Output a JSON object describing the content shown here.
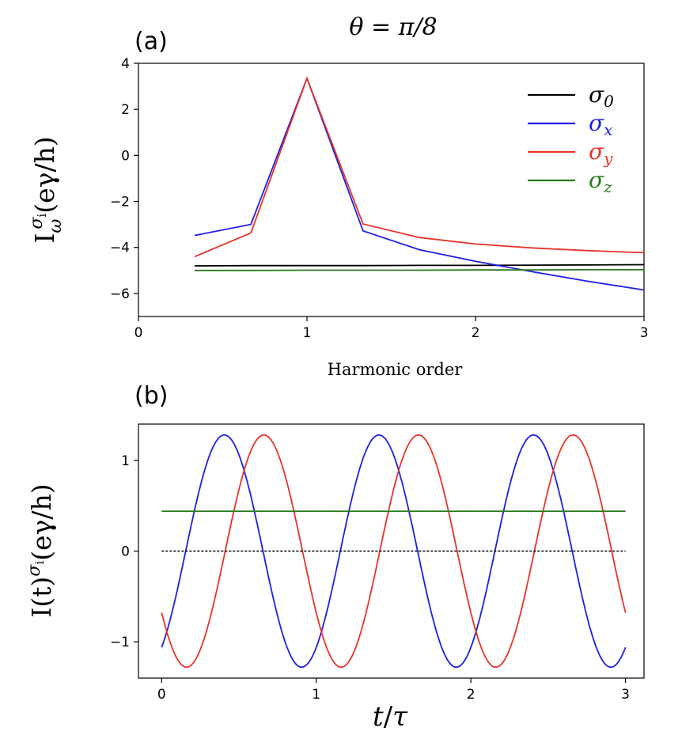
{
  "title": "θ = π/8",
  "chart_data": [
    {
      "type": "line",
      "panel_label": "(a)",
      "xlabel": "Harmonic order",
      "ylabel": {
        "base": "I",
        "sub": "ω",
        "sup": "σ",
        "supsub": "i",
        "unit": "(eγ/h)"
      },
      "xlim": [
        0,
        3
      ],
      "ylim": [
        -7,
        4
      ],
      "xticks": [
        0,
        1,
        2,
        3
      ],
      "yticks": [
        4,
        2,
        0,
        -2,
        -4,
        -6
      ],
      "ytick_labels": [
        "4",
        "2",
        "0",
        "−2",
        "−4",
        "−6"
      ],
      "legend_position": "top-right",
      "series": [
        {
          "name": "σ",
          "sub": "0",
          "color": "#000000",
          "x": [
            0.333,
            0.667,
            1,
            1.333,
            1.667,
            2,
            2.333,
            2.667,
            3
          ],
          "y": [
            -4.8,
            -4.79,
            -4.79,
            -4.79,
            -4.78,
            -4.78,
            -4.77,
            -4.76,
            -4.75
          ]
        },
        {
          "name": "σ",
          "sub": "x",
          "color": "#1f1fe6",
          "x": [
            0.333,
            0.667,
            1,
            1.333,
            1.667,
            2,
            2.333,
            2.667,
            3
          ],
          "y": [
            -3.48,
            -3.0,
            3.35,
            -3.28,
            -4.1,
            -4.6,
            -5.05,
            -5.47,
            -5.85
          ]
        },
        {
          "name": "σ",
          "sub": "y",
          "color": "#e8332a",
          "x": [
            0.333,
            0.667,
            1,
            1.333,
            1.667,
            2,
            2.333,
            2.667,
            3
          ],
          "y": [
            -4.4,
            -3.37,
            3.35,
            -2.98,
            -3.57,
            -3.85,
            -4.02,
            -4.14,
            -4.23
          ]
        },
        {
          "name": "σ",
          "sub": "z",
          "color": "#2a7a1e",
          "x": [
            0.333,
            0.667,
            1,
            1.333,
            1.667,
            2,
            2.333,
            2.667,
            3
          ],
          "y": [
            -5.0,
            -5.0,
            -4.99,
            -4.99,
            -4.99,
            -4.98,
            -4.98,
            -4.97,
            -4.97
          ]
        }
      ]
    },
    {
      "type": "line",
      "panel_label": "(b)",
      "xlabel": {
        "num": "t",
        "den": "τ"
      },
      "ylabel": {
        "base": "I(t)",
        "sup": "σ",
        "supsub": "i",
        "unit": "(eγ/h)"
      },
      "xlim": [
        -0.15,
        3.12
      ],
      "ylim": [
        -1.4,
        1.4
      ],
      "xticks": [
        0,
        1,
        2,
        3
      ],
      "yticks": [
        1,
        0,
        -1
      ],
      "ytick_labels": [
        "1",
        "0",
        "−1"
      ],
      "series": [
        {
          "name": "σx",
          "color": "#1f1fe6",
          "amplitude": 1.28,
          "phase_deg": -56,
          "t_range": [
            0,
            3
          ]
        },
        {
          "name": "σy",
          "color": "#e8332a",
          "amplitude": 1.28,
          "phase_deg": -148,
          "t_range": [
            0,
            3
          ]
        },
        {
          "name": "σ0",
          "color": "#000000",
          "constant": 0.0,
          "t_range": [
            0,
            3
          ],
          "dashed": true
        },
        {
          "name": "σz",
          "color": "#2a7a1e",
          "constant": 0.44,
          "t_range": [
            0,
            3
          ]
        }
      ]
    }
  ]
}
